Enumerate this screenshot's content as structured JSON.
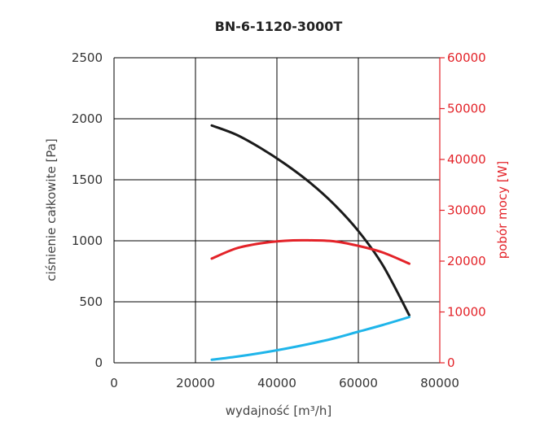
{
  "chart_data": {
    "type": "line",
    "title": "BN-6-1120-3000T",
    "xlabel": "wydajność [m³/h]",
    "ylabel": "ciśnienie całkowite [Pa]",
    "y2label": "pobór mocy [W]",
    "xlim": [
      0,
      80000
    ],
    "ylim": [
      0,
      2500
    ],
    "y2lim": [
      0,
      60000
    ],
    "x_ticks": [
      0,
      20000,
      40000,
      60000,
      80000
    ],
    "y_ticks": [
      0,
      500,
      1000,
      1500,
      2000,
      2500
    ],
    "y2_ticks": [
      0,
      10000,
      20000,
      30000,
      40000,
      50000,
      60000
    ],
    "grid": true,
    "colors": {
      "pressure": "#1a1a1a",
      "power": "#e32228",
      "blue": "#1fb5ea",
      "y2_axis": "#e32228"
    },
    "series": [
      {
        "key": "pressure",
        "axis": "left",
        "x": [
          24000,
          30000,
          36000,
          42000,
          48000,
          54000,
          60000,
          66000,
          72500
        ],
        "values": [
          1945,
          1870,
          1760,
          1630,
          1480,
          1300,
          1080,
          800,
          390
        ]
      },
      {
        "key": "power",
        "axis": "right",
        "x": [
          24000,
          30000,
          36000,
          42000,
          47000,
          54000,
          60000,
          66000,
          72500
        ],
        "values": [
          20500,
          22500,
          23500,
          24000,
          24100,
          23900,
          23000,
          21700,
          19500
        ]
      },
      {
        "key": "blue",
        "axis": "left",
        "x": [
          24000,
          30000,
          36000,
          42000,
          48000,
          54000,
          60000,
          66000,
          72500
        ],
        "values": [
          25,
          50,
          80,
          115,
          155,
          200,
          255,
          310,
          375
        ]
      }
    ]
  }
}
